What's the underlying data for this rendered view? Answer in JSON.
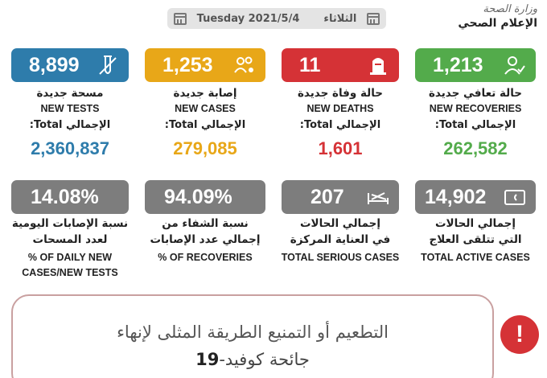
{
  "header": {
    "day_en": "Tuesday",
    "date": "2021/5/4",
    "day_ar": "الثلاثاء",
    "ministry_line1": "وزارة الصحة",
    "ministry_line2": "الإعلام الصحي"
  },
  "stats": {
    "tests": {
      "value": "8,899",
      "label_ar": "مسحة جديدة",
      "label_en": "NEW TESTS",
      "total_label": "الإجمالي Total:",
      "total": "2,360,837",
      "color": "#2e7cab",
      "icon": "test-tube-icon"
    },
    "cases": {
      "value": "1,253",
      "label_ar": "إصابة جديدة",
      "label_en": "NEW CASES",
      "total_label": "الإجمالي Total:",
      "total": "279,085",
      "color": "#e8a718",
      "icon": "people-virus-icon"
    },
    "deaths": {
      "value": "11",
      "label_ar": "حالة وفاة جديدة",
      "label_en": "NEW DEATHS",
      "total_label": "الإجمالي Total:",
      "total": "1,601",
      "color": "#d53236",
      "icon": "tombstone-icon"
    },
    "recoveries": {
      "value": "1,213",
      "label_ar": "حالة تعافي جديدة",
      "label_en": "NEW RECOVERIES",
      "total_label": "الإجمالي Total:",
      "total": "262,582",
      "color": "#53ab4b",
      "icon": "user-check-icon"
    }
  },
  "ratios": {
    "daily": {
      "value": "14.08%",
      "label_ar1": "نسبة الإصابات اليومية",
      "label_ar2": "لعدد المسحات",
      "label_en1": "% OF DAILY NEW",
      "label_en2": "CASES/NEW TESTS"
    },
    "recovery": {
      "value": "94.09%",
      "label_ar1": "نسبة الشفاء من",
      "label_ar2": "إجمالي عدد الإصابات",
      "label_en1": "% OF RECOVERIES"
    },
    "serious": {
      "value": "207",
      "label_ar1": "إجمالي الحالات",
      "label_ar2": "في العناية المركزة",
      "label_en1": "TOTAL SERIOUS CASES",
      "icon": "hospital-bed-icon"
    },
    "active": {
      "value": "14,902",
      "label_ar1": "إجمالي الحالات",
      "label_ar2": "التي تتلقى العلاج",
      "label_en1": "TOTAL ACTIVE CASES",
      "icon": "wallet-icon"
    }
  },
  "banner": {
    "line1": "التطعيم أو التمنيع الطريقة المثلى لإنهاء",
    "line2_a": "جائحة كوفيد-",
    "line2_b": "19",
    "alert_symbol": "!"
  }
}
